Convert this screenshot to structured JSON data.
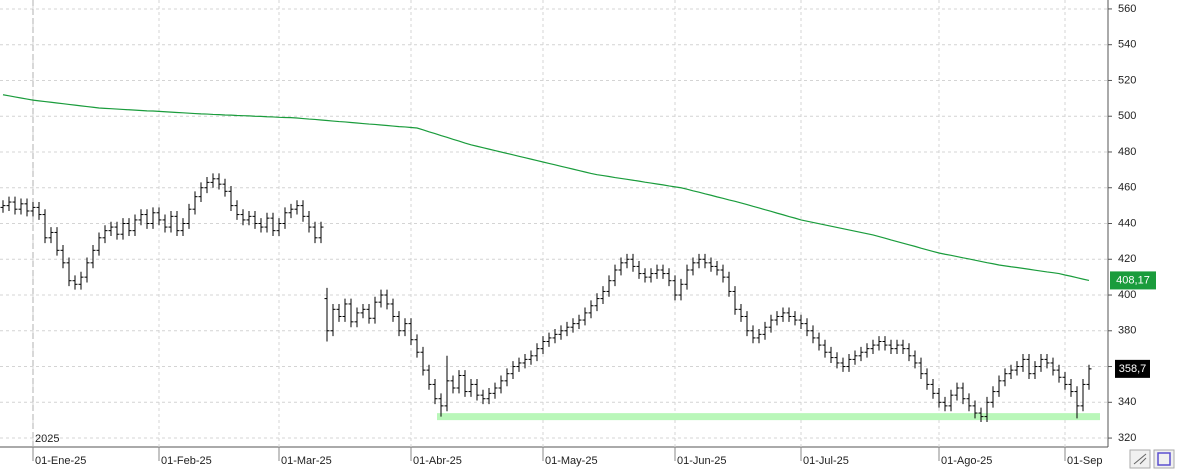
{
  "chart_data": {
    "type": "ohlc",
    "year_label": "2025",
    "categories": [
      null,
      null,
      null,
      null,
      null,
      "01-Ene-25",
      null,
      null,
      null,
      null,
      null,
      null,
      null,
      null,
      null,
      null,
      null,
      null,
      null,
      null,
      null,
      null,
      null,
      null,
      null,
      null,
      "01-Feb-25",
      null,
      null,
      null,
      null,
      null,
      null,
      null,
      null,
      null,
      null,
      null,
      null,
      null,
      null,
      null,
      null,
      null,
      null,
      null,
      "01-Mar-25",
      null,
      null,
      null,
      null,
      null,
      null,
      null,
      null,
      null,
      null,
      null,
      null,
      null,
      null,
      null,
      null,
      null,
      null,
      null,
      null,
      null,
      "01-Abr-25",
      null,
      null,
      null,
      null,
      null,
      null,
      null,
      null,
      null,
      null,
      null,
      null,
      null,
      null,
      null,
      null,
      null,
      null,
      null,
      null,
      null,
      "01-May-25",
      null,
      null,
      null,
      null,
      null,
      null,
      null,
      null,
      null,
      null,
      null,
      null,
      null,
      null,
      null,
      null,
      null,
      null,
      null,
      null,
      null,
      "01-Jun-25",
      null,
      null,
      null,
      null,
      null,
      null,
      null,
      null,
      null,
      null,
      null,
      null,
      null,
      null,
      null,
      null,
      null,
      null,
      null,
      null,
      "01-Jul-25",
      null,
      null,
      null,
      null,
      null,
      null,
      null,
      null,
      null,
      null,
      null,
      null,
      null,
      null,
      null,
      null,
      null,
      null,
      null,
      null,
      null,
      null,
      "01-Ago-25",
      null,
      null,
      null,
      null,
      null,
      null,
      null,
      null,
      null,
      null,
      null,
      null,
      null,
      null,
      null,
      null,
      null,
      null,
      null,
      null,
      "01-Sep",
      null,
      null,
      null,
      null
    ],
    "open": [
      449,
      450,
      452,
      448,
      451,
      447,
      449,
      445,
      432,
      435,
      425,
      418,
      408,
      406,
      410,
      418,
      425,
      432,
      436,
      438,
      434,
      440,
      436,
      442,
      445,
      440,
      446,
      442,
      438,
      444,
      436,
      440,
      448,
      455,
      460,
      463,
      465,
      462,
      458,
      450,
      445,
      442,
      444,
      440,
      438,
      443,
      436,
      440,
      446,
      448,
      450,
      444,
      438,
      432,
      398,
      380,
      392,
      388,
      395,
      385,
      390,
      392,
      387,
      396,
      400,
      395,
      388,
      380,
      384,
      375,
      368,
      358,
      350,
      342,
      338,
      352,
      348,
      355,
      346,
      350,
      344,
      342,
      345,
      348,
      352,
      356,
      360,
      362,
      364,
      366,
      370,
      374,
      376,
      378,
      380,
      382,
      384,
      386,
      390,
      394,
      398,
      402,
      408,
      414,
      418,
      420,
      416,
      412,
      410,
      412,
      414,
      412,
      408,
      400,
      406,
      414,
      418,
      420,
      418,
      416,
      414,
      410,
      402,
      392,
      388,
      380,
      376,
      378,
      382,
      386,
      388,
      390,
      388,
      386,
      384,
      380,
      376,
      372,
      368,
      365,
      362,
      360,
      364,
      366,
      368,
      370,
      372,
      374,
      372,
      370,
      372,
      370,
      366,
      362,
      356,
      350,
      345,
      340,
      338,
      344,
      348,
      342,
      338,
      334,
      332,
      340,
      346,
      352,
      356,
      358,
      360,
      364,
      356,
      360,
      364,
      362,
      358,
      354,
      350,
      346,
      338,
      350
    ],
    "high": [
      453,
      455,
      455,
      454,
      454,
      452,
      452,
      448,
      438,
      438,
      428,
      421,
      411,
      413,
      421,
      428,
      435,
      439,
      441,
      441,
      443,
      443,
      445,
      448,
      448,
      449,
      449,
      445,
      447,
      447,
      443,
      451,
      458,
      463,
      466,
      468,
      468,
      465,
      461,
      453,
      448,
      447,
      447,
      443,
      446,
      446,
      443,
      449,
      451,
      453,
      453,
      447,
      441,
      441,
      404,
      395,
      395,
      398,
      398,
      393,
      395,
      395,
      399,
      403,
      403,
      398,
      391,
      387,
      387,
      378,
      371,
      361,
      353,
      345,
      366,
      355,
      358,
      358,
      353,
      353,
      347,
      348,
      351,
      355,
      359,
      363,
      365,
      367,
      369,
      373,
      377,
      379,
      381,
      383,
      385,
      387,
      389,
      393,
      397,
      401,
      405,
      411,
      417,
      421,
      423,
      423,
      419,
      415,
      415,
      417,
      417,
      415,
      411,
      409,
      417,
      421,
      423,
      423,
      421,
      419,
      417,
      413,
      405,
      395,
      391,
      383,
      381,
      385,
      389,
      391,
      393,
      393,
      391,
      389,
      387,
      383,
      379,
      375,
      371,
      368,
      365,
      367,
      369,
      371,
      373,
      375,
      377,
      377,
      375,
      375,
      375,
      373,
      369,
      365,
      359,
      353,
      348,
      343,
      347,
      351,
      351,
      345,
      341,
      337,
      343,
      349,
      355,
      359,
      361,
      363,
      367,
      367,
      363,
      367,
      367,
      365,
      361,
      357,
      353,
      349,
      353,
      361
    ],
    "low": [
      446,
      447,
      445,
      445,
      444,
      444,
      442,
      429,
      429,
      422,
      415,
      405,
      403,
      403,
      407,
      415,
      422,
      429,
      433,
      431,
      431,
      433,
      433,
      439,
      437,
      437,
      439,
      435,
      435,
      433,
      433,
      437,
      445,
      452,
      457,
      460,
      459,
      455,
      447,
      442,
      439,
      439,
      437,
      435,
      435,
      433,
      433,
      437,
      443,
      445,
      441,
      435,
      429,
      429,
      374,
      377,
      385,
      385,
      382,
      382,
      387,
      384,
      384,
      393,
      392,
      385,
      377,
      377,
      372,
      365,
      355,
      347,
      339,
      332,
      335,
      345,
      345,
      343,
      343,
      341,
      339,
      339,
      342,
      345,
      349,
      353,
      357,
      359,
      361,
      363,
      367,
      371,
      373,
      375,
      377,
      379,
      381,
      383,
      387,
      391,
      395,
      399,
      405,
      411,
      415,
      413,
      409,
      407,
      407,
      409,
      409,
      405,
      397,
      397,
      403,
      411,
      415,
      415,
      413,
      411,
      407,
      399,
      389,
      385,
      377,
      373,
      373,
      375,
      379,
      383,
      385,
      385,
      383,
      381,
      377,
      373,
      369,
      365,
      362,
      359,
      357,
      357,
      361,
      363,
      365,
      367,
      369,
      369,
      367,
      367,
      367,
      363,
      359,
      353,
      347,
      342,
      337,
      335,
      335,
      341,
      339,
      335,
      331,
      329,
      329,
      337,
      343,
      349,
      353,
      355,
      357,
      353,
      353,
      357,
      359,
      355,
      351,
      347,
      343,
      331,
      335,
      347
    ],
    "close": [
      450,
      452,
      448,
      451,
      447,
      449,
      445,
      432,
      435,
      425,
      418,
      408,
      406,
      410,
      418,
      425,
      432,
      436,
      438,
      434,
      440,
      436,
      442,
      445,
      440,
      446,
      442,
      438,
      444,
      436,
      440,
      448,
      455,
      460,
      463,
      465,
      462,
      458,
      450,
      445,
      442,
      444,
      440,
      438,
      443,
      436,
      440,
      446,
      448,
      450,
      444,
      438,
      432,
      438,
      380,
      392,
      388,
      395,
      385,
      390,
      392,
      387,
      396,
      400,
      395,
      388,
      380,
      384,
      375,
      368,
      358,
      350,
      342,
      338,
      352,
      348,
      355,
      346,
      350,
      344,
      342,
      345,
      348,
      352,
      356,
      360,
      362,
      364,
      366,
      370,
      374,
      376,
      378,
      380,
      382,
      384,
      386,
      390,
      394,
      398,
      402,
      408,
      414,
      418,
      420,
      416,
      412,
      410,
      412,
      414,
      412,
      408,
      400,
      406,
      414,
      418,
      420,
      418,
      416,
      414,
      410,
      402,
      392,
      388,
      380,
      376,
      378,
      382,
      386,
      388,
      390,
      388,
      386,
      384,
      380,
      376,
      372,
      368,
      365,
      362,
      360,
      364,
      366,
      368,
      370,
      372,
      374,
      372,
      370,
      372,
      370,
      366,
      362,
      356,
      350,
      345,
      340,
      338,
      344,
      348,
      342,
      338,
      334,
      332,
      340,
      346,
      352,
      356,
      358,
      360,
      364,
      356,
      360,
      364,
      362,
      358,
      354,
      350,
      346,
      338,
      350,
      358.7
    ],
    "close_label": "358,7",
    "bar_color": "#000000",
    "ma": {
      "color": "#1a9c3c",
      "last_label": "408,17",
      "values": [
        512,
        511.4,
        510.8,
        510.2,
        509.6,
        509,
        508.6,
        508.2,
        507.8,
        507.4,
        507,
        506.6,
        506.2,
        505.8,
        505.4,
        505,
        504.6,
        504.4,
        504.2,
        504,
        503.8,
        503.6,
        503.4,
        503.2,
        503,
        502.9,
        502.7,
        502.5,
        502.3,
        502.1,
        501.9,
        501.7,
        501.5,
        501.3,
        501.2,
        501,
        500.9,
        500.7,
        500.6,
        500.4,
        500.3,
        500.2,
        500,
        499.9,
        499.7,
        499.6,
        499.4,
        499.3,
        499.2,
        499,
        498.7,
        498.4,
        498.2,
        497.9,
        497.6,
        497.3,
        497,
        496.8,
        496.5,
        496.2,
        495.9,
        495.6,
        495.4,
        495.1,
        494.8,
        494.5,
        494.2,
        494,
        493.7,
        493.4,
        492.4,
        491.3,
        490.3,
        489.2,
        488.2,
        487.1,
        486.1,
        485,
        484,
        483.2,
        482.4,
        481.6,
        480.8,
        480,
        479.2,
        478.4,
        477.6,
        476.8,
        476,
        475.2,
        474.4,
        473.6,
        472.8,
        472,
        471.2,
        470.4,
        469.6,
        468.8,
        468,
        467.3,
        466.8,
        466.3,
        465.7,
        465.2,
        464.7,
        464.2,
        463.7,
        463.1,
        462.6,
        462.1,
        461.6,
        461,
        460.5,
        460,
        459.2,
        458.3,
        457.5,
        456.6,
        455.8,
        454.9,
        454.1,
        453.2,
        452.4,
        451.5,
        450.6,
        449.6,
        448.7,
        447.7,
        446.8,
        445.8,
        444.9,
        443.9,
        443,
        442,
        441.3,
        440.6,
        439.9,
        439.2,
        438.5,
        437.8,
        437.1,
        436.4,
        435.7,
        435,
        434.3,
        433.6,
        432.7,
        431.8,
        430.8,
        429.9,
        429,
        428.1,
        427.2,
        426.2,
        425.3,
        424.4,
        423.5,
        422.8,
        422.2,
        421.5,
        420.8,
        420.2,
        419.5,
        418.8,
        418.1,
        417.5,
        416.8,
        416.3,
        415.8,
        415.4,
        414.9,
        414.4,
        413.9,
        413.4,
        412.9,
        412.5,
        412,
        411.2,
        410.5,
        409.7,
        408.9,
        408.17
      ]
    },
    "support": {
      "value": 332,
      "color": "#b9f7b9"
    },
    "ylim": [
      315,
      565
    ],
    "yticks": [
      320,
      340,
      360,
      380,
      400,
      420,
      440,
      460,
      480,
      500,
      520,
      540,
      560
    ],
    "grid": true
  }
}
